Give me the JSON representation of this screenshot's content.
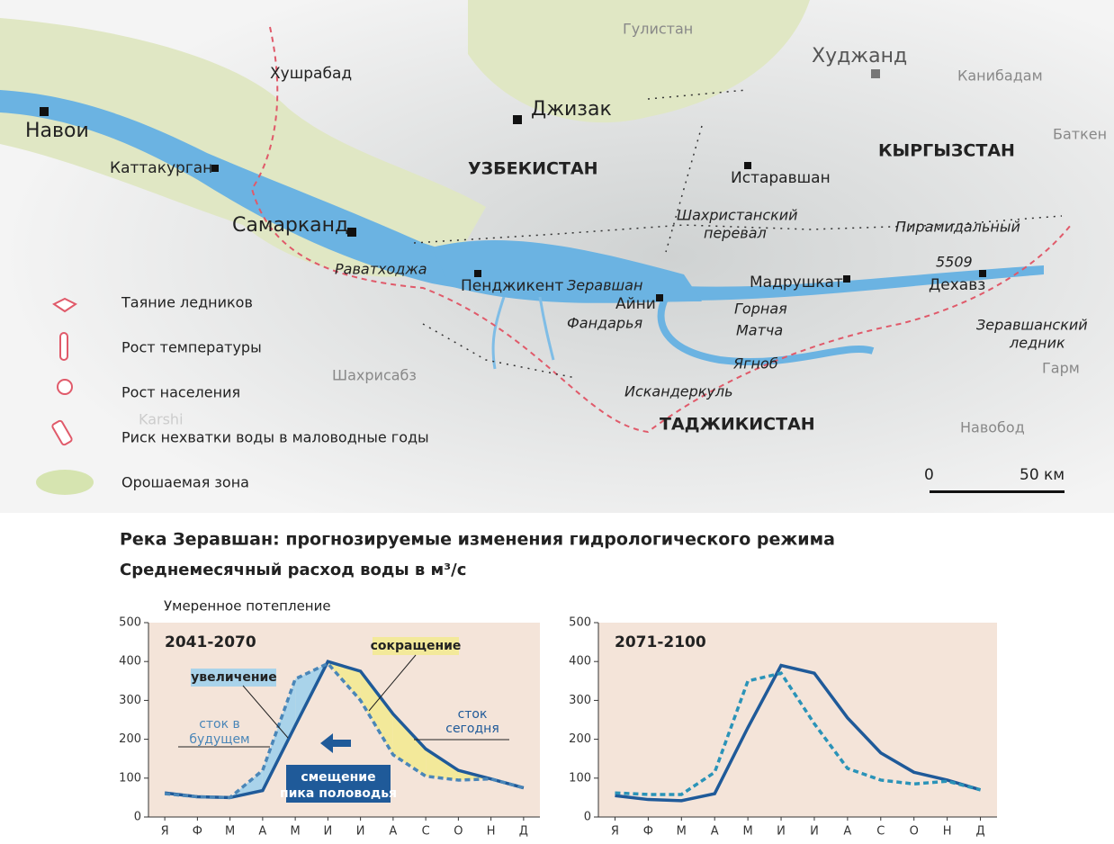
{
  "map": {
    "places": [
      "Навои",
      "Хушрабад",
      "Каттакурган",
      "Самарканд",
      "Джизак",
      "Гулистан",
      "Худжанд",
      "Канибадам",
      "Баткен",
      "УЗБЕКИСТАН",
      "КЫРГЫЗСТАН",
      "ТАДЖИКИСТАН",
      "Истаравшан",
      "Шахристанский",
      "перевал",
      "Пирамидальный",
      "5509",
      "Дехавз",
      "Мадрушкат",
      "Пенджикент",
      "Айни",
      "Зеравшан",
      "Раватходжа",
      "Фандарья",
      "Горная",
      "Матча",
      "Ягноб",
      "Искандеркуль",
      "Зеравшанский",
      "ледник",
      "Гарм",
      "Навобод",
      "Шахрисабз",
      "Karshi"
    ],
    "legend": [
      "Таяние ледников",
      "Рост температуры",
      "Рост населения",
      "Риск нехватки воды в маловодные годы",
      "Орошаемая зона"
    ],
    "scale": [
      "0",
      "50 км"
    ]
  },
  "title": "Река Зеравшан: прогнозируемые изменения гидрологического режима",
  "subtitle": "Среднемесячный расход воды в м³/с",
  "chart_data": [
    {
      "type": "line",
      "subtitle": "Умеренное потепление",
      "period": "2041-2070",
      "categories": [
        "Я",
        "Ф",
        "М",
        "А",
        "М",
        "И",
        "И",
        "А",
        "С",
        "О",
        "Н",
        "Д"
      ],
      "series": [
        {
          "name": "сток сегодня",
          "color": "#1f5a99",
          "dash": false,
          "values": [
            62,
            52,
            50,
            68,
            235,
            400,
            375,
            265,
            175,
            120,
            98,
            75
          ]
        },
        {
          "name": "сток в будущем",
          "color": "#4a86b8",
          "dash": true,
          "values": [
            60,
            52,
            50,
            120,
            355,
            395,
            300,
            160,
            105,
            95,
            98,
            75
          ]
        }
      ],
      "annotations": [
        "увеличение",
        "сокращение",
        "сток в",
        "будущем",
        "сток",
        "сегодня",
        "смещение",
        "пика половодья"
      ],
      "fill_between": true,
      "increase_color": "#a9d3ea",
      "decrease_color": "#f3e99a",
      "ylim": [
        0,
        500
      ],
      "yticks": [
        0,
        100,
        200,
        300,
        400,
        500
      ]
    },
    {
      "type": "line",
      "period": "2071-2100",
      "categories": [
        "Я",
        "Ф",
        "М",
        "А",
        "М",
        "И",
        "И",
        "А",
        "С",
        "О",
        "Н",
        "Д"
      ],
      "series": [
        {
          "color": "#1f5a99",
          "dash": false,
          "values": [
            55,
            45,
            42,
            60,
            230,
            390,
            370,
            255,
            165,
            115,
            95,
            70
          ]
        },
        {
          "color": "#2a93b8",
          "dash": true,
          "values": [
            62,
            58,
            58,
            115,
            350,
            370,
            240,
            125,
            95,
            85,
            92,
            70
          ]
        }
      ],
      "fill_between": false,
      "ylim": [
        0,
        500
      ],
      "yticks": [
        0,
        100,
        200,
        300,
        400,
        500
      ]
    }
  ]
}
